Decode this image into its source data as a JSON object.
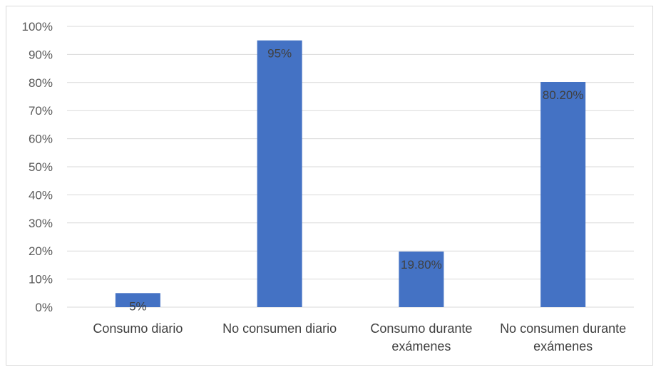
{
  "chart_data": {
    "type": "bar",
    "categories": [
      [
        "Consumo diario"
      ],
      [
        "No consumen diario"
      ],
      [
        "Consumo durante",
        "exámenes"
      ],
      [
        "No consumen durante",
        "exámenes"
      ]
    ],
    "values": [
      5,
      95,
      19.8,
      80.2
    ],
    "data_labels": [
      "5%",
      "95%",
      "19.80%",
      "80.20%"
    ],
    "yticks": [
      "0%",
      "10%",
      "20%",
      "30%",
      "40%",
      "50%",
      "60%",
      "70%",
      "80%",
      "90%",
      "100%"
    ],
    "ylim": [
      0,
      100
    ],
    "grid": true,
    "legend": "none",
    "bar_color": "#4472c4",
    "grid_color": "#d9d9d9"
  }
}
